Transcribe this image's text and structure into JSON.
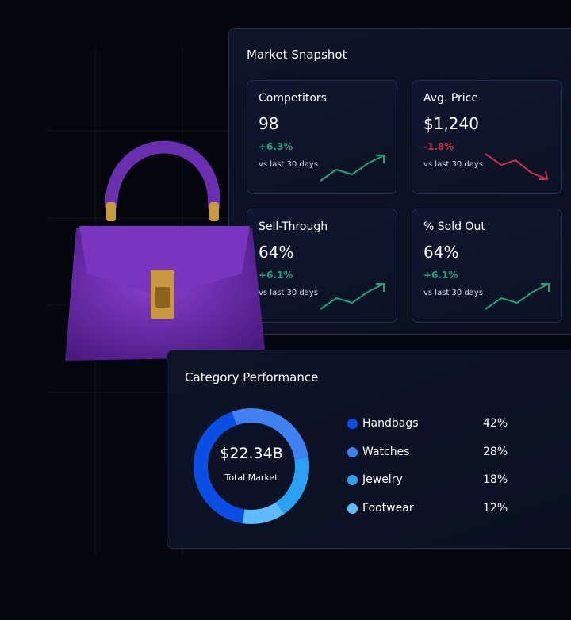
{
  "snapshot": {
    "title": "Market Snapshot",
    "cards": [
      {
        "title": "Competitors",
        "value": "98",
        "change": "+6.3%",
        "note": "vs last 30 days"
      },
      {
        "title": "Avg. Price",
        "value": "$1,240",
        "change": "-1.8%",
        "note": "vs last 30 days"
      },
      {
        "title": "Sell-Through",
        "value": "64%",
        "change": "+6.1%",
        "note": "vs last 30 days"
      },
      {
        "title": "% Sold Out",
        "value": "64%",
        "change": "+6.1%",
        "note": "vs last 30 days"
      }
    ]
  },
  "category": {
    "title": "Category Performance",
    "total": "$22.34B",
    "total_label": "Total Market",
    "items": [
      {
        "name": "Handbags",
        "value": 42,
        "label": "42%",
        "color": "#0a4ee6"
      },
      {
        "name": "Watches",
        "value": 28,
        "label": "28%",
        "color": "#3f80f2"
      },
      {
        "name": "Jewelry",
        "value": 18,
        "label": "18%",
        "color": "#2aa0f4"
      },
      {
        "name": "Footwear",
        "value": 12,
        "label": "12%",
        "color": "#5cbcff"
      }
    ]
  }
}
